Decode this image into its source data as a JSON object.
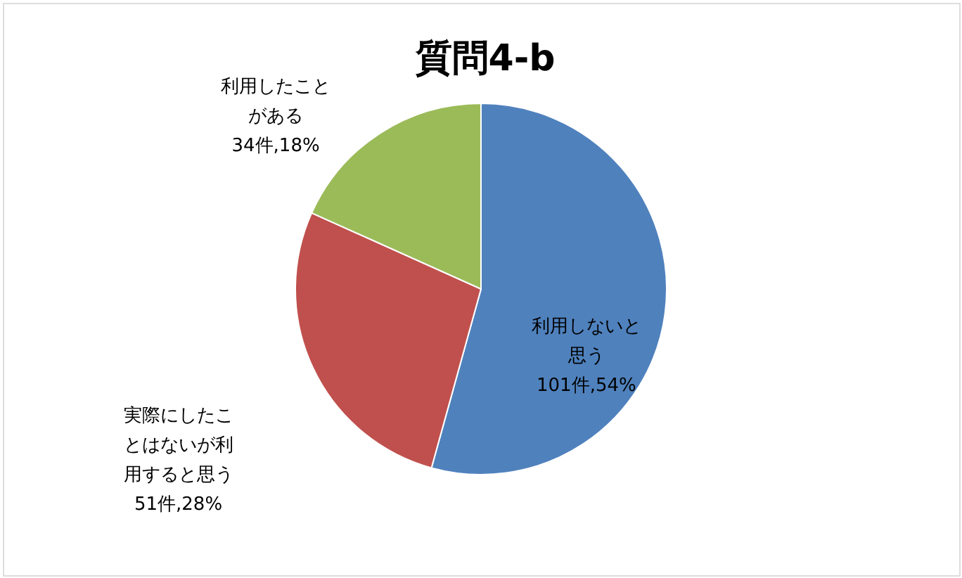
{
  "chart_data": {
    "type": "pie",
    "title": "質問4-b",
    "categories": [
      "利用しないと思う",
      "実際にしたことはないが利用すると思う",
      "利用したことがある"
    ],
    "values": [
      101,
      51,
      34
    ],
    "colors": [
      "#4f81bd",
      "#c0504d",
      "#9bbb59"
    ],
    "value_labels": [
      "101件,54%",
      "51件,28%",
      "34件,18%"
    ]
  }
}
